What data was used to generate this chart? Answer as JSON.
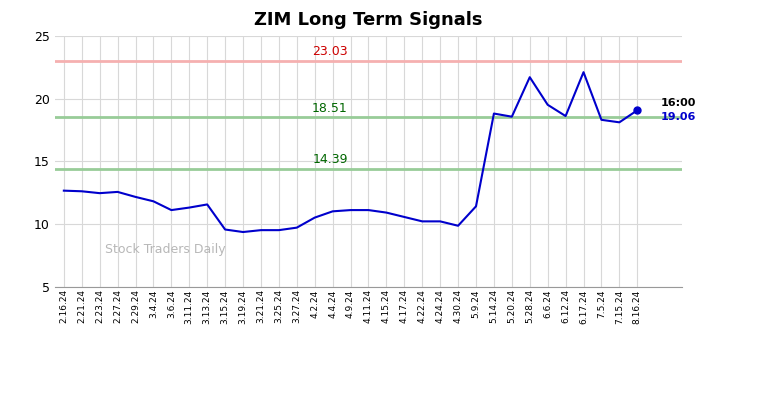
{
  "title": "ZIM Long Term Signals",
  "watermark": "Stock Traders Daily",
  "hlines": [
    {
      "y": 23.03,
      "color": "#f5b0b0",
      "label": "23.03",
      "label_color": "#cc0000"
    },
    {
      "y": 18.51,
      "color": "#98cc98",
      "label": "18.51",
      "label_color": "#006600"
    },
    {
      "y": 14.39,
      "color": "#98cc98",
      "label": "14.39",
      "label_color": "#006600"
    }
  ],
  "last_label": "16:00",
  "last_value": "19.06",
  "last_value_color": "#0000cc",
  "line_color": "#0000cc",
  "dot_color": "#0000cc",
  "ylim": [
    5,
    25
  ],
  "yticks": [
    5,
    10,
    15,
    20,
    25
  ],
  "x_labels": [
    "2.16.24",
    "2.21.24",
    "2.23.24",
    "2.27.24",
    "2.29.24",
    "3.4.24",
    "3.6.24",
    "3.11.24",
    "3.13.24",
    "3.15.24",
    "3.19.24",
    "3.21.24",
    "3.25.24",
    "3.27.24",
    "4.2.24",
    "4.4.24",
    "4.9.24",
    "4.11.24",
    "4.15.24",
    "4.17.24",
    "4.22.24",
    "4.24.24",
    "4.30.24",
    "5.9.24",
    "5.14.24",
    "5.20.24",
    "5.28.24",
    "6.6.24",
    "6.12.24",
    "6.17.24",
    "7.5.24",
    "7.15.24",
    "8.16.24"
  ],
  "prices": [
    12.65,
    12.6,
    12.45,
    12.55,
    12.15,
    11.8,
    11.1,
    11.3,
    11.55,
    9.55,
    9.35,
    9.5,
    9.5,
    9.7,
    10.5,
    11.0,
    11.1,
    11.1,
    10.9,
    10.55,
    10.2,
    10.2,
    9.85,
    11.4,
    18.8,
    18.55,
    21.7,
    19.5,
    18.6,
    22.1,
    18.3,
    18.1,
    19.06
  ]
}
